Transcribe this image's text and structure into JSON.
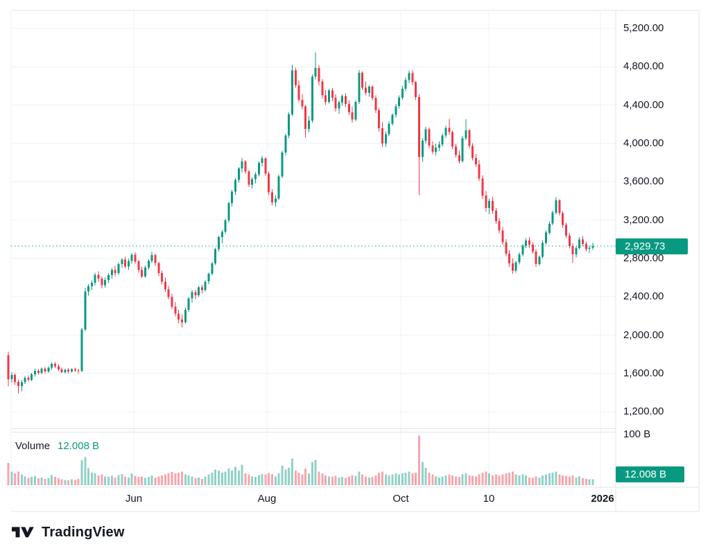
{
  "price_scale": {
    "ticks": [
      "5,200.00",
      "4,800.00",
      "4,400.00",
      "4,000.00",
      "3,600.00",
      "3,200.00",
      "2,800.00",
      "2,400.00",
      "2,000.00",
      "1,600.00",
      "1,200.00"
    ],
    "current_price_label": "2,929.73"
  },
  "volume_scale": {
    "tick": "100 B",
    "current_volume_label": "12.008 B"
  },
  "legend": {
    "label": "Volume",
    "value": "12.008 B"
  },
  "time_scale": {
    "labels": [
      "Jun",
      "Aug",
      "Oct",
      "10",
      "2026"
    ]
  },
  "branding": {
    "name": "TradingView",
    "logo": "tradingview-logo"
  },
  "chart_data": {
    "type": "candlestick+volume",
    "title": "",
    "legend_label": "Volume",
    "last_price": 2929.73,
    "last_volume_billions": 12.008,
    "price_axis": {
      "tick_values": [
        5200,
        4800,
        4400,
        4000,
        3600,
        3200,
        2800,
        2400,
        2000,
        1600,
        1200
      ],
      "grid": true
    },
    "volume_axis": {
      "tick_values_billions": [
        100
      ],
      "baseline": 0
    },
    "time_axis": {
      "ticks": [
        "Jun",
        "Aug",
        "Oct",
        "10",
        "2026"
      ],
      "grid": true
    },
    "colors": {
      "up": "#089981",
      "down": "#f23645",
      "vol_up": "rgba(8,153,129,0.45)",
      "vol_down": "rgba(242,54,69,0.45)",
      "accent": "#089981",
      "text": "#131722",
      "grid": "#eef0f6",
      "border": "#e0e3eb"
    },
    "candles_format": [
      "open",
      "high",
      "low",
      "close",
      "volume_billions"
    ],
    "candles": [
      [
        1790,
        1825,
        1465,
        1540,
        46
      ],
      [
        1540,
        1612,
        1502,
        1585,
        28
      ],
      [
        1585,
        1598,
        1478,
        1512,
        24
      ],
      [
        1512,
        1535,
        1390,
        1468,
        28
      ],
      [
        1468,
        1528,
        1408,
        1507,
        22
      ],
      [
        1507,
        1572,
        1488,
        1556,
        18
      ],
      [
        1556,
        1580,
        1512,
        1533,
        15
      ],
      [
        1533,
        1605,
        1520,
        1592,
        17
      ],
      [
        1592,
        1648,
        1565,
        1628,
        19
      ],
      [
        1628,
        1645,
        1582,
        1605,
        14
      ],
      [
        1605,
        1662,
        1590,
        1648,
        16
      ],
      [
        1648,
        1665,
        1600,
        1618,
        13
      ],
      [
        1618,
        1672,
        1605,
        1660,
        15
      ],
      [
        1660,
        1712,
        1638,
        1700,
        21
      ],
      [
        1700,
        1718,
        1655,
        1675,
        17
      ],
      [
        1675,
        1695,
        1628,
        1642,
        14
      ],
      [
        1642,
        1660,
        1600,
        1612,
        12
      ],
      [
        1612,
        1650,
        1598,
        1638,
        11
      ],
      [
        1638,
        1655,
        1602,
        1618,
        10
      ],
      [
        1618,
        1652,
        1608,
        1645,
        12
      ],
      [
        1645,
        1658,
        1615,
        1630,
        11
      ],
      [
        1630,
        1648,
        1598,
        1622,
        13
      ],
      [
        1622,
        2075,
        1615,
        2058,
        52
      ],
      [
        2058,
        2490,
        2040,
        2455,
        58
      ],
      [
        2455,
        2530,
        2410,
        2508,
        35
      ],
      [
        2508,
        2572,
        2470,
        2545,
        26
      ],
      [
        2545,
        2650,
        2518,
        2630,
        24
      ],
      [
        2630,
        2665,
        2558,
        2590,
        20
      ],
      [
        2590,
        2612,
        2488,
        2520,
        22
      ],
      [
        2520,
        2598,
        2495,
        2575,
        18
      ],
      [
        2575,
        2648,
        2540,
        2625,
        17
      ],
      [
        2625,
        2700,
        2588,
        2680,
        19
      ],
      [
        2680,
        2722,
        2612,
        2645,
        16
      ],
      [
        2645,
        2758,
        2630,
        2740,
        21
      ],
      [
        2740,
        2802,
        2700,
        2788,
        23
      ],
      [
        2788,
        2815,
        2692,
        2715,
        18
      ],
      [
        2715,
        2798,
        2680,
        2772,
        16
      ],
      [
        2772,
        2858,
        2745,
        2840,
        24
      ],
      [
        2840,
        2862,
        2745,
        2768,
        19
      ],
      [
        2768,
        2785,
        2652,
        2680,
        17
      ],
      [
        2680,
        2712,
        2595,
        2612,
        18
      ],
      [
        2612,
        2725,
        2600,
        2705,
        15
      ],
      [
        2705,
        2790,
        2682,
        2775,
        17
      ],
      [
        2775,
        2872,
        2752,
        2835,
        20
      ],
      [
        2835,
        2848,
        2722,
        2752,
        16
      ],
      [
        2752,
        2762,
        2618,
        2648,
        18
      ],
      [
        2648,
        2672,
        2528,
        2555,
        20
      ],
      [
        2555,
        2598,
        2452,
        2478,
        22
      ],
      [
        2478,
        2512,
        2372,
        2398,
        25
      ],
      [
        2398,
        2428,
        2272,
        2295,
        27
      ],
      [
        2295,
        2342,
        2195,
        2225,
        24
      ],
      [
        2225,
        2262,
        2122,
        2162,
        26
      ],
      [
        2162,
        2215,
        2078,
        2132,
        28
      ],
      [
        2132,
        2285,
        2118,
        2262,
        22
      ],
      [
        2262,
        2398,
        2240,
        2382,
        20
      ],
      [
        2382,
        2468,
        2340,
        2448,
        18
      ],
      [
        2448,
        2472,
        2372,
        2415,
        14
      ],
      [
        2415,
        2512,
        2398,
        2498,
        16
      ],
      [
        2498,
        2522,
        2432,
        2468,
        13
      ],
      [
        2468,
        2575,
        2452,
        2558,
        18
      ],
      [
        2558,
        2655,
        2530,
        2640,
        22
      ],
      [
        2640,
        2762,
        2622,
        2748,
        26
      ],
      [
        2748,
        2912,
        2730,
        2895,
        32
      ],
      [
        2895,
        3038,
        2872,
        3022,
        30
      ],
      [
        3022,
        3095,
        2958,
        3078,
        26
      ],
      [
        3078,
        3215,
        3055,
        3198,
        28
      ],
      [
        3198,
        3392,
        3175,
        3378,
        34
      ],
      [
        3378,
        3515,
        3340,
        3495,
        30
      ],
      [
        3495,
        3638,
        3462,
        3618,
        38
      ],
      [
        3618,
        3755,
        3590,
        3738,
        30
      ],
      [
        3738,
        3848,
        3695,
        3812,
        42
      ],
      [
        3812,
        3825,
        3682,
        3705,
        24
      ],
      [
        3705,
        3722,
        3545,
        3568,
        22
      ],
      [
        3568,
        3648,
        3528,
        3625,
        18
      ],
      [
        3625,
        3698,
        3585,
        3678,
        17
      ],
      [
        3678,
        3815,
        3655,
        3798,
        21
      ],
      [
        3798,
        3872,
        3762,
        3842,
        23
      ],
      [
        3842,
        3855,
        3662,
        3685,
        22
      ],
      [
        3685,
        3705,
        3462,
        3488,
        25
      ],
      [
        3488,
        3522,
        3352,
        3385,
        23
      ],
      [
        3385,
        3462,
        3340,
        3425,
        18
      ],
      [
        3425,
        3672,
        3408,
        3655,
        24
      ],
      [
        3655,
        3925,
        3638,
        3905,
        40
      ],
      [
        3905,
        4102,
        3872,
        4082,
        32
      ],
      [
        4082,
        4325,
        4055,
        4302,
        36
      ],
      [
        4302,
        4822,
        4285,
        4762,
        55
      ],
      [
        4762,
        4792,
        4582,
        4608,
        30
      ],
      [
        4608,
        4655,
        4428,
        4455,
        26
      ],
      [
        4455,
        4512,
        4352,
        4388,
        22
      ],
      [
        4388,
        4402,
        4062,
        4152,
        34
      ],
      [
        4152,
        4285,
        4118,
        4238,
        24
      ],
      [
        4238,
        4718,
        4215,
        4698,
        48
      ],
      [
        4698,
        4952,
        4668,
        4788,
        52
      ],
      [
        4788,
        4815,
        4602,
        4648,
        28
      ],
      [
        4648,
        4672,
        4468,
        4502,
        24
      ],
      [
        4502,
        4558,
        4402,
        4432,
        20
      ],
      [
        4432,
        4572,
        4415,
        4552,
        18
      ],
      [
        4552,
        4578,
        4442,
        4478,
        17
      ],
      [
        4478,
        4512,
        4332,
        4365,
        19
      ],
      [
        4365,
        4448,
        4308,
        4428,
        16
      ],
      [
        4428,
        4512,
        4392,
        4495,
        17
      ],
      [
        4495,
        4522,
        4378,
        4412,
        15
      ],
      [
        4412,
        4452,
        4295,
        4325,
        18
      ],
      [
        4325,
        4388,
        4218,
        4248,
        21
      ],
      [
        4248,
        4452,
        4232,
        4435,
        19
      ],
      [
        4435,
        4765,
        4412,
        4738,
        28
      ],
      [
        4738,
        4752,
        4555,
        4582,
        22
      ],
      [
        4582,
        4648,
        4502,
        4528,
        18
      ],
      [
        4528,
        4612,
        4488,
        4592,
        16
      ],
      [
        4592,
        4608,
        4452,
        4472,
        17
      ],
      [
        4472,
        4502,
        4318,
        4345,
        20
      ],
      [
        4345,
        4372,
        4122,
        4158,
        26
      ],
      [
        4158,
        4225,
        3958,
        3998,
        28
      ],
      [
        3998,
        4125,
        3962,
        4098,
        22
      ],
      [
        4098,
        4232,
        4075,
        4205,
        20
      ],
      [
        4205,
        4315,
        4182,
        4298,
        22
      ],
      [
        4298,
        4412,
        4272,
        4388,
        24
      ],
      [
        4388,
        4502,
        4365,
        4478,
        22
      ],
      [
        4478,
        4598,
        4455,
        4572,
        24
      ],
      [
        4572,
        4688,
        4548,
        4662,
        26
      ],
      [
        4662,
        4758,
        4628,
        4732,
        28
      ],
      [
        4732,
        4762,
        4608,
        4638,
        24
      ],
      [
        4638,
        4655,
        4452,
        4485,
        26
      ],
      [
        4485,
        4512,
        3462,
        3858,
        102
      ],
      [
        3858,
        4052,
        3808,
        4028,
        48
      ],
      [
        4028,
        4172,
        3998,
        4148,
        36
      ],
      [
        4148,
        4165,
        3952,
        3978,
        26
      ],
      [
        3978,
        4022,
        3888,
        3912,
        22
      ],
      [
        3912,
        3998,
        3872,
        3955,
        18
      ],
      [
        3955,
        4022,
        3918,
        3988,
        16
      ],
      [
        3988,
        4105,
        3965,
        4082,
        18
      ],
      [
        4082,
        4185,
        4058,
        4162,
        20
      ],
      [
        4162,
        4255,
        4088,
        4118,
        22
      ],
      [
        4118,
        4132,
        3942,
        3968,
        20
      ],
      [
        3968,
        3995,
        3852,
        3878,
        18
      ],
      [
        3878,
        3925,
        3788,
        3815,
        17
      ],
      [
        3815,
        4078,
        3798,
        4052,
        22
      ],
      [
        4052,
        4252,
        4035,
        4135,
        24
      ],
      [
        4135,
        4148,
        3948,
        3975,
        20
      ],
      [
        3975,
        4002,
        3822,
        3848,
        19
      ],
      [
        3848,
        3892,
        3755,
        3782,
        18
      ],
      [
        3782,
        3825,
        3608,
        3635,
        22
      ],
      [
        3635,
        3668,
        3422,
        3455,
        26
      ],
      [
        3455,
        3502,
        3288,
        3325,
        28
      ],
      [
        3325,
        3425,
        3262,
        3398,
        24
      ],
      [
        3398,
        3442,
        3265,
        3298,
        20
      ],
      [
        3298,
        3325,
        3162,
        3188,
        22
      ],
      [
        3188,
        3222,
        3062,
        3092,
        20
      ],
      [
        3092,
        3125,
        2942,
        2968,
        22
      ],
      [
        2968,
        3002,
        2822,
        2848,
        24
      ],
      [
        2848,
        2885,
        2712,
        2748,
        26
      ],
      [
        2748,
        2802,
        2638,
        2672,
        28
      ],
      [
        2672,
        2775,
        2652,
        2758,
        22
      ],
      [
        2758,
        2865,
        2738,
        2842,
        20
      ],
      [
        2842,
        2952,
        2822,
        2932,
        22
      ],
      [
        2932,
        3012,
        2908,
        2988,
        20
      ],
      [
        2988,
        3022,
        2912,
        2942,
        16
      ],
      [
        2942,
        2968,
        2848,
        2872,
        15
      ],
      [
        2872,
        2895,
        2712,
        2742,
        18
      ],
      [
        2742,
        2832,
        2722,
        2815,
        16
      ],
      [
        2815,
        2985,
        2798,
        2962,
        20
      ],
      [
        2962,
        3092,
        2945,
        3068,
        22
      ],
      [
        3068,
        3185,
        3048,
        3162,
        24
      ],
      [
        3162,
        3298,
        3145,
        3278,
        26
      ],
      [
        3278,
        3438,
        3258,
        3405,
        28
      ],
      [
        3405,
        3418,
        3248,
        3272,
        22
      ],
      [
        3272,
        3295,
        3122,
        3148,
        20
      ],
      [
        3148,
        3172,
        3012,
        3038,
        19
      ],
      [
        3038,
        3065,
        2902,
        2928,
        18
      ],
      [
        2928,
        2958,
        2755,
        2842,
        20
      ],
      [
        2842,
        2925,
        2808,
        2908,
        16
      ],
      [
        2908,
        3022,
        2892,
        2998,
        18
      ],
      [
        2998,
        3035,
        2928,
        2952,
        14
      ],
      [
        2952,
        2975,
        2872,
        2898,
        13
      ],
      [
        2898,
        2932,
        2858,
        2912,
        12
      ],
      [
        2912,
        2965,
        2888,
        2929.73,
        12.008
      ]
    ]
  }
}
